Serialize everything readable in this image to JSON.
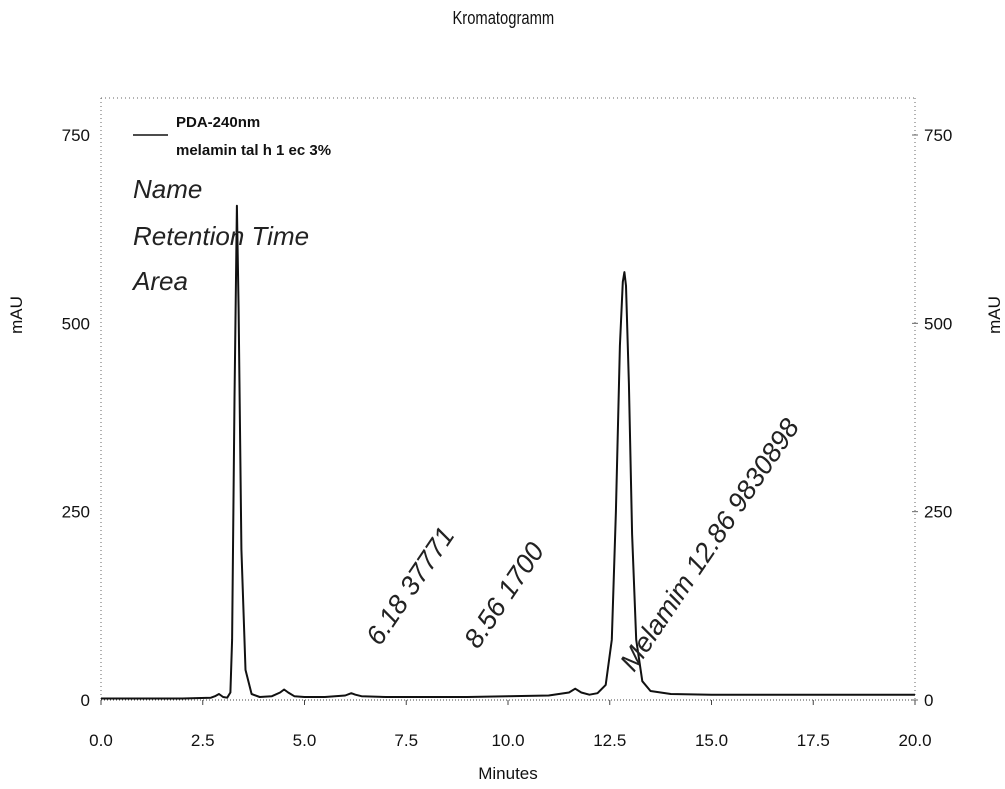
{
  "chart_data": {
    "type": "line",
    "title": "Kromatogramm",
    "xlabel": "Minutes",
    "ylabel_left": "mAU",
    "ylabel_right": "mAU",
    "xlim": [
      0,
      20
    ],
    "ylim": [
      0,
      800
    ],
    "x_ticks": [
      "0.0",
      "2.5",
      "5.0",
      "7.5",
      "10.0",
      "12.5",
      "15.0",
      "17.5",
      "20.0"
    ],
    "y_ticks_left": [
      "0",
      "250",
      "500",
      "750"
    ],
    "y_ticks_right": [
      "0",
      "250",
      "500",
      "750"
    ],
    "legend": {
      "placement": "top-left",
      "lines": [
        "PDA-240nm",
        "melamin tal h 1 ec 3%"
      ]
    },
    "header_labels": [
      "Name",
      "Retention Time",
      "Area"
    ],
    "series": [
      {
        "name": "PDA-240nm",
        "x": [
          0.0,
          1.0,
          2.0,
          2.7,
          2.8,
          2.9,
          3.0,
          3.1,
          3.18,
          3.22,
          3.28,
          3.34,
          3.38,
          3.45,
          3.55,
          3.7,
          3.9,
          4.2,
          4.4,
          4.5,
          4.6,
          4.75,
          5.0,
          5.5,
          6.0,
          6.15,
          6.25,
          6.4,
          7.0,
          8.0,
          9.0,
          10.0,
          11.0,
          11.5,
          11.65,
          11.8,
          12.0,
          12.2,
          12.4,
          12.55,
          12.65,
          12.75,
          12.82,
          12.86,
          12.9,
          12.97,
          13.05,
          13.15,
          13.3,
          13.5,
          14.0,
          15.0,
          16.0,
          17.0,
          18.0,
          19.0,
          20.0
        ],
        "y": [
          2,
          2,
          2,
          3,
          5,
          8,
          4,
          3,
          10,
          80,
          400,
          656,
          520,
          200,
          40,
          8,
          4,
          5,
          10,
          14,
          10,
          5,
          4,
          4,
          6,
          9,
          7,
          5,
          4,
          4,
          4,
          5,
          6,
          10,
          15,
          10,
          7,
          9,
          20,
          80,
          250,
          470,
          555,
          568,
          550,
          420,
          220,
          80,
          25,
          12,
          8,
          7,
          7,
          7,
          7,
          7,
          7
        ]
      }
    ],
    "annotations": [
      {
        "text": "6.18  37771",
        "x": 6.18
      },
      {
        "text": "8.56  1700",
        "x": 8.56
      },
      {
        "text": "Melamim  12.86  9830898",
        "x": 12.86
      }
    ]
  }
}
